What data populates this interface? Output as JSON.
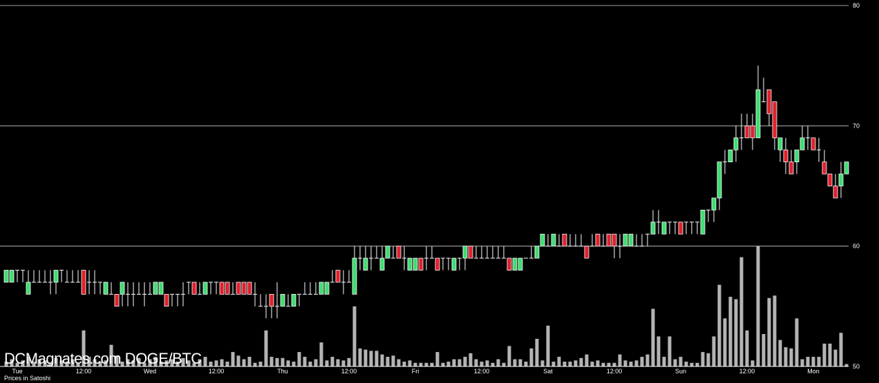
{
  "chart_data": {
    "type": "candlestick",
    "title": "DCMagnates.com DOGE/BTC",
    "y_label": "Prices in Satoshi",
    "categories": [
      null,
      null,
      "Tue",
      null,
      null,
      null,
      null,
      null,
      null,
      null,
      null,
      null,
      null,
      null,
      "12:00",
      null,
      null,
      null,
      null,
      null,
      null,
      null,
      null,
      null,
      null,
      null,
      "Wed",
      null,
      null,
      null,
      null,
      null,
      null,
      null,
      null,
      null,
      null,
      null,
      "12:00",
      null,
      null,
      null,
      null,
      null,
      null,
      null,
      null,
      null,
      null,
      null,
      "Thu",
      null,
      null,
      null,
      null,
      null,
      null,
      null,
      null,
      null,
      null,
      null,
      "12:00",
      null,
      null,
      null,
      null,
      null,
      null,
      null,
      null,
      null,
      null,
      null,
      "Fri",
      null,
      null,
      null,
      null,
      null,
      null,
      null,
      null,
      null,
      null,
      null,
      "12:00",
      null,
      null,
      null,
      null,
      null,
      null,
      null,
      null,
      null,
      null,
      null,
      "Sat",
      null,
      null,
      null,
      null,
      null,
      null,
      null,
      null,
      null,
      null,
      null,
      "12:00",
      null,
      null,
      null,
      null,
      null,
      null,
      null,
      null,
      null,
      null,
      null,
      "Sun",
      null,
      null,
      null,
      null,
      null,
      null,
      null,
      null,
      null,
      null,
      null,
      "12:00",
      null,
      null,
      null,
      null,
      null,
      null,
      null,
      null,
      null,
      null,
      null,
      "Mon",
      null,
      null,
      null,
      null,
      null,
      null
    ],
    "ohlc": [
      [
        57,
        58,
        57,
        58
      ],
      [
        57,
        58,
        57,
        58
      ],
      [
        58,
        58,
        57,
        58
      ],
      [
        58,
        58,
        57,
        58
      ],
      [
        56,
        58,
        56,
        57
      ],
      [
        57,
        58,
        57,
        57
      ],
      [
        57,
        58,
        57,
        57
      ],
      [
        57,
        58,
        57,
        57
      ],
      [
        57,
        58,
        56,
        57
      ],
      [
        57,
        58,
        56,
        58
      ],
      [
        58,
        58,
        57,
        58
      ],
      [
        57,
        58,
        57,
        57
      ],
      [
        57,
        58,
        57,
        57
      ],
      [
        57,
        58,
        57,
        57
      ],
      [
        58,
        58,
        56,
        56
      ],
      [
        57,
        58,
        56,
        57
      ],
      [
        57,
        58,
        56,
        57
      ],
      [
        57,
        57,
        56,
        57
      ],
      [
        56,
        57,
        56,
        57
      ],
      [
        56,
        57,
        56,
        56
      ],
      [
        56,
        56,
        55,
        55
      ],
      [
        56,
        57,
        55,
        57
      ],
      [
        56,
        57,
        55,
        56
      ],
      [
        56,
        57,
        55,
        56
      ],
      [
        56,
        57,
        56,
        56
      ],
      [
        56,
        57,
        55,
        56
      ],
      [
        56,
        57,
        56,
        56
      ],
      [
        56,
        57,
        56,
        57
      ],
      [
        56,
        57,
        56,
        57
      ],
      [
        56,
        56,
        55,
        55
      ],
      [
        56,
        56,
        55,
        56
      ],
      [
        56,
        56,
        55,
        56
      ],
      [
        56,
        57,
        55,
        56
      ],
      [
        57,
        57,
        56,
        57
      ],
      [
        57,
        57,
        56,
        56
      ],
      [
        56,
        57,
        56,
        56
      ],
      [
        56,
        57,
        56,
        57
      ],
      [
        57,
        57,
        56,
        57
      ],
      [
        57,
        57,
        56,
        57
      ],
      [
        57,
        57,
        56,
        56
      ],
      [
        57,
        57,
        56,
        56
      ],
      [
        56,
        57,
        56,
        56
      ],
      [
        57,
        57,
        56,
        56
      ],
      [
        57,
        57,
        56,
        56
      ],
      [
        57,
        57,
        56,
        56
      ],
      [
        56,
        57,
        55,
        56
      ],
      [
        55,
        56,
        55,
        55
      ],
      [
        55,
        56,
        54,
        55
      ],
      [
        56,
        56,
        54,
        55
      ],
      [
        55,
        57,
        54,
        55
      ],
      [
        55,
        56,
        55,
        56
      ],
      [
        55,
        56,
        55,
        55
      ],
      [
        55,
        56,
        55,
        56
      ],
      [
        56,
        56,
        55,
        56
      ],
      [
        56,
        57,
        56,
        56
      ],
      [
        56,
        57,
        56,
        56
      ],
      [
        56,
        57,
        56,
        56
      ],
      [
        56,
        57,
        56,
        57
      ],
      [
        56,
        57,
        56,
        57
      ],
      [
        57,
        58,
        57,
        57
      ],
      [
        58,
        58,
        57,
        57
      ],
      [
        57,
        58,
        56,
        57
      ],
      [
        57,
        58,
        57,
        57
      ],
      [
        56,
        60,
        56,
        59
      ],
      [
        59,
        60,
        58,
        59
      ],
      [
        58,
        60,
        58,
        59
      ],
      [
        59,
        60,
        58,
        59
      ],
      [
        59,
        60,
        59,
        59
      ],
      [
        58,
        60,
        58,
        59
      ],
      [
        59,
        60,
        59,
        60
      ],
      [
        59,
        60,
        59,
        59
      ],
      [
        60,
        60,
        59,
        59
      ],
      [
        59,
        60,
        58,
        59
      ],
      [
        58,
        59,
        58,
        59
      ],
      [
        58,
        59,
        58,
        59
      ],
      [
        59,
        59,
        58,
        58
      ],
      [
        59,
        60,
        58,
        59
      ],
      [
        59,
        60,
        59,
        59
      ],
      [
        59,
        59,
        58,
        58
      ],
      [
        59,
        59,
        58,
        59
      ],
      [
        59,
        59,
        58,
        59
      ],
      [
        58,
        59,
        58,
        59
      ],
      [
        59,
        59,
        58,
        59
      ],
      [
        59,
        60,
        58,
        60
      ],
      [
        60,
        60,
        59,
        59
      ],
      [
        59,
        60,
        59,
        59
      ],
      [
        59,
        60,
        59,
        59
      ],
      [
        59,
        60,
        59,
        59
      ],
      [
        59,
        60,
        59,
        59
      ],
      [
        59,
        60,
        59,
        59
      ],
      [
        59,
        60,
        59,
        59
      ],
      [
        59,
        59,
        58,
        58
      ],
      [
        58,
        59,
        58,
        59
      ],
      [
        58,
        59,
        58,
        59
      ],
      [
        59,
        59,
        59,
        59
      ],
      [
        59,
        60,
        59,
        59
      ],
      [
        59,
        60,
        59,
        60
      ],
      [
        60,
        61,
        60,
        61
      ],
      [
        60,
        61,
        60,
        60
      ],
      [
        60,
        61,
        60,
        61
      ],
      [
        60,
        61,
        60,
        60
      ],
      [
        61,
        61,
        60,
        60
      ],
      [
        60,
        61,
        60,
        60
      ],
      [
        60,
        61,
        60,
        60
      ],
      [
        60,
        61,
        60,
        60
      ],
      [
        60,
        60,
        59,
        59
      ],
      [
        60,
        61,
        60,
        60
      ],
      [
        61,
        61,
        60,
        60
      ],
      [
        60,
        61,
        60,
        60
      ],
      [
        61,
        61,
        60,
        60
      ],
      [
        61,
        61,
        59,
        60
      ],
      [
        60,
        61,
        59,
        60
      ],
      [
        60,
        61,
        60,
        61
      ],
      [
        60,
        61,
        60,
        61
      ],
      [
        60,
        61,
        60,
        60
      ],
      [
        60,
        61,
        60,
        60
      ],
      [
        61,
        61,
        60,
        61
      ],
      [
        61,
        63,
        61,
        62
      ],
      [
        62,
        63,
        61,
        62
      ],
      [
        61,
        62,
        61,
        62
      ],
      [
        62,
        62,
        61,
        62
      ],
      [
        62,
        62,
        61,
        62
      ],
      [
        62,
        62,
        61,
        61
      ],
      [
        62,
        62,
        61,
        62
      ],
      [
        62,
        62,
        61,
        62
      ],
      [
        62,
        62,
        61,
        62
      ],
      [
        61,
        63,
        61,
        63
      ],
      [
        63,
        63,
        62,
        63
      ],
      [
        63,
        64,
        62,
        64
      ],
      [
        64,
        67,
        63,
        67
      ],
      [
        67,
        68,
        66,
        67
      ],
      [
        67,
        68,
        67,
        68
      ],
      [
        68,
        70,
        67,
        69
      ],
      [
        69,
        71,
        68,
        69
      ],
      [
        70,
        71,
        69,
        69
      ],
      [
        70,
        71,
        68,
        69
      ],
      [
        69,
        75,
        69,
        73
      ],
      [
        72,
        74,
        72,
        72
      ],
      [
        73,
        73,
        70,
        71
      ],
      [
        72,
        72,
        68,
        69
      ],
      [
        68,
        69,
        67,
        69
      ],
      [
        68,
        69,
        66,
        67
      ],
      [
        67,
        68,
        66,
        66
      ],
      [
        67,
        68,
        66,
        68
      ],
      [
        68,
        70,
        68,
        69
      ],
      [
        69,
        70,
        68,
        69
      ],
      [
        69,
        69,
        68,
        68
      ],
      [
        68,
        69,
        67,
        68
      ],
      [
        67,
        68,
        66,
        66
      ],
      [
        66,
        66,
        65,
        65
      ],
      [
        65,
        66,
        64,
        64
      ],
      [
        65,
        67,
        64,
        66
      ],
      [
        66,
        67,
        66,
        67
      ]
    ],
    "volume": [
      4,
      6,
      3,
      5,
      8,
      4,
      6,
      5,
      3,
      7,
      5,
      4,
      6,
      3,
      30,
      8,
      6,
      4,
      5,
      18,
      9,
      4,
      6,
      5,
      7,
      3,
      6,
      8,
      4,
      5,
      6,
      4,
      7,
      5,
      3,
      6,
      8,
      4,
      5,
      6,
      4,
      12,
      9,
      6,
      8,
      3,
      4,
      30,
      8,
      7,
      7,
      5,
      4,
      12,
      8,
      4,
      6,
      20,
      5,
      8,
      6,
      5,
      7,
      50,
      15,
      14,
      13,
      13,
      10,
      8,
      9,
      6,
      4,
      5,
      3,
      3,
      3,
      3,
      12,
      3,
      4,
      6,
      6,
      8,
      11,
      6,
      4,
      5,
      3,
      6,
      3,
      17,
      6,
      6,
      4,
      15,
      23,
      5,
      34,
      4,
      8,
      4,
      4,
      5,
      7,
      10,
      4,
      5,
      3,
      3,
      3,
      10,
      5,
      4,
      5,
      8,
      10,
      48,
      25,
      8,
      25,
      6,
      8,
      4,
      3,
      3,
      12,
      11,
      25,
      68,
      40,
      58,
      56,
      91,
      30,
      5,
      100,
      27,
      57,
      59,
      22,
      16,
      15,
      40,
      6,
      8,
      8,
      8,
      19,
      19,
      14,
      28,
      2
    ],
    "ylim": [
      50,
      80
    ],
    "yticks": [
      50,
      60,
      70,
      80
    ],
    "y2lim": [
      0,
      100
    ],
    "grid": true,
    "up_color": "#3fdc70",
    "down_color": "#e0202c",
    "volume_color": "#b4b4b4"
  }
}
